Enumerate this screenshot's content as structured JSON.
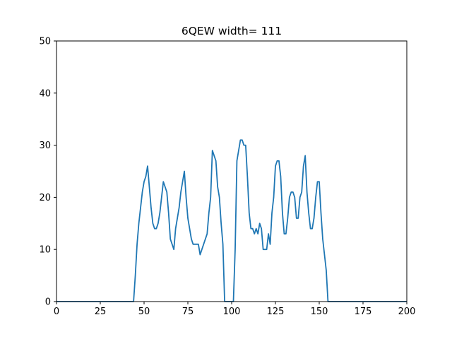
{
  "chart_data": {
    "type": "line",
    "title": "6QEW width= 111",
    "xlabel": "",
    "ylabel": "",
    "xlim": [
      0,
      200
    ],
    "ylim": [
      0,
      50
    ],
    "grid": false,
    "x_ticks": [
      0,
      25,
      50,
      75,
      100,
      125,
      150,
      175,
      200
    ],
    "y_ticks": [
      0,
      10,
      20,
      30,
      40,
      50
    ],
    "line_color": "#1f77b4",
    "series": [
      {
        "x": [
          0,
          44,
          45,
          46,
          47,
          48,
          49,
          50,
          51,
          52,
          53,
          54,
          55,
          56,
          57,
          58,
          59,
          60,
          61,
          62,
          63,
          64,
          65,
          66,
          67,
          68,
          69,
          70,
          71,
          72,
          73,
          74,
          75,
          76,
          77,
          78,
          79,
          80,
          81,
          82,
          83,
          84,
          85,
          86,
          87,
          88,
          89,
          90,
          91,
          92,
          93,
          94,
          95,
          96,
          97,
          98,
          99,
          100,
          101,
          102,
          103,
          104,
          105,
          106,
          107,
          108,
          109,
          110,
          111,
          112,
          113,
          114,
          115,
          116,
          117,
          118,
          119,
          120,
          121,
          122,
          123,
          124,
          125,
          126,
          127,
          128,
          129,
          130,
          131,
          132,
          133,
          134,
          135,
          136,
          137,
          138,
          139,
          140,
          141,
          142,
          143,
          144,
          145,
          146,
          147,
          148,
          149,
          150,
          151,
          152,
          153,
          154,
          155,
          156,
          200
        ],
        "y": [
          0,
          0,
          5,
          11,
          15,
          18,
          21,
          23,
          24,
          26,
          22,
          18,
          15,
          14,
          14,
          15,
          17,
          20,
          23,
          22,
          21,
          17,
          12,
          11,
          10,
          14,
          16,
          18,
          21,
          23,
          25,
          20,
          16,
          14,
          12,
          11,
          11,
          11,
          11,
          9,
          10,
          11,
          12,
          13,
          17,
          20,
          29,
          28,
          27,
          22,
          20,
          15,
          11,
          0,
          0,
          0,
          0,
          0,
          0,
          10,
          27,
          29,
          31,
          31,
          30,
          30,
          24,
          17,
          14,
          14,
          13,
          14,
          13,
          15,
          14,
          10,
          10,
          10,
          13,
          11,
          17,
          20,
          26,
          27,
          27,
          24,
          17,
          13,
          13,
          16,
          20,
          21,
          21,
          20,
          16,
          16,
          20,
          21,
          26,
          28,
          21,
          17,
          14,
          14,
          16,
          20,
          23,
          23,
          17,
          12,
          9,
          6,
          0,
          0,
          0
        ]
      }
    ]
  }
}
